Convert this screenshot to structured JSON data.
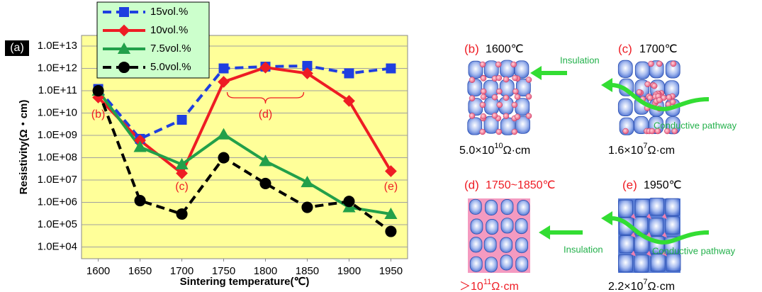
{
  "chart_data": {
    "type": "line",
    "panel_label": "(a)",
    "x_label": "Sintering temperature(℃)",
    "y_label": "Resistivity(Ω・cm)",
    "x": [
      1600,
      1650,
      1700,
      1750,
      1800,
      1850,
      1900,
      1950
    ],
    "series": [
      {
        "name": "15vol.%",
        "color": "#1f3fe0",
        "marker": "square",
        "dashed": true,
        "values": [
          120000000000,
          700000000,
          5000000000,
          1000000000000,
          1200000000000,
          1300000000000,
          600000000000,
          1000000000000
        ]
      },
      {
        "name": "10vol.%",
        "color": "#ee1c24",
        "marker": "diamond",
        "dashed": false,
        "values": [
          50000000000,
          600000000,
          20000000,
          250000000000,
          1100000000000,
          600000000000,
          35000000000,
          25000000
        ]
      },
      {
        "name": "7.5vol.%",
        "color": "#22a04a",
        "marker": "triangle",
        "dashed": false,
        "values": [
          100000000000,
          300000000,
          50000000,
          1100000000,
          70000000,
          8000000,
          600000,
          300000
        ]
      },
      {
        "name": "5.0vol.%",
        "color": "#000000",
        "marker": "circle",
        "dashed": true,
        "values": [
          100000000000,
          1200000,
          300000,
          100000000,
          7000000,
          600000,
          1100000,
          50000
        ]
      }
    ],
    "xlim": [
      1580,
      1970
    ],
    "xticks": [
      1600,
      1650,
      1700,
      1750,
      1800,
      1850,
      1900,
      1950
    ],
    "ylim": [
      3000,
      30000000000000
    ],
    "yticks": [
      {
        "value": 10000,
        "label": "1.0E+04"
      },
      {
        "value": 100000,
        "label": "1.0E+05"
      },
      {
        "value": 1000000,
        "label": "1.0E+06"
      },
      {
        "value": 10000000,
        "label": "1.0E+07"
      },
      {
        "value": 100000000,
        "label": "1.0E+08"
      },
      {
        "value": 1000000000,
        "label": "1.0E+09"
      },
      {
        "value": 10000000000,
        "label": "1.0E+10"
      },
      {
        "value": 100000000000,
        "label": "1.0E+11"
      },
      {
        "value": 1000000000000,
        "label": "1.0E+12"
      },
      {
        "value": 10000000000000,
        "label": "1.0E+13"
      }
    ],
    "log_y": true,
    "grid": true,
    "plot_background": "#ffff99",
    "legend_background": "#ccffcc",
    "annotations": [
      "(b)",
      "(c)",
      "(d)",
      "(e)"
    ]
  },
  "panels": [
    {
      "label": "(b)",
      "temperature": "1600℃",
      "notes": [
        "Insulation"
      ],
      "resistivity": {
        "mantissa": "5.0×10",
        "exponent": "10",
        "unit": "Ω·cm"
      }
    },
    {
      "label": "(c)",
      "temperature": "1700℃",
      "notes": [
        "Conductive pathway"
      ],
      "resistivity": {
        "mantissa": "1.6×10",
        "exponent": "7",
        "unit": "Ω·cm"
      }
    },
    {
      "label": "(d)",
      "temperature": "1750~1850℃",
      "notes": [
        "Insulation"
      ],
      "resistivity": {
        "mantissa": "＞10",
        "exponent": "11",
        "unit": "Ω·cm"
      }
    },
    {
      "label": "(e)",
      "temperature": "1950℃",
      "notes": [
        "Conductive pathway"
      ],
      "resistivity": {
        "mantissa": "2.2×10",
        "exponent": "7",
        "unit": "Ω·cm"
      }
    }
  ]
}
